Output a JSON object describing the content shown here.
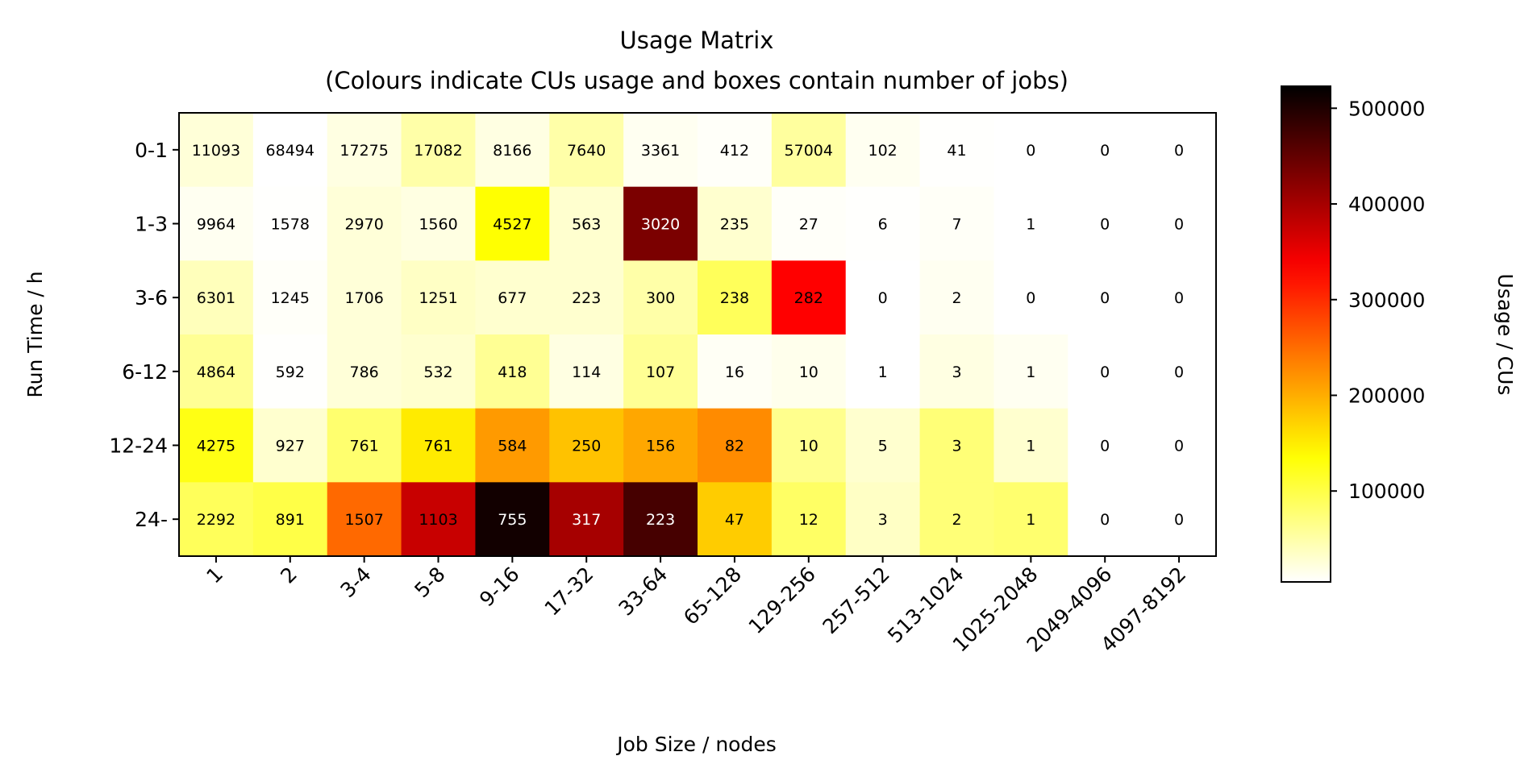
{
  "chart_data": {
    "type": "heatmap",
    "title": "Usage Matrix",
    "subtitle": "(Colours indicate CUs usage and boxes contain number of jobs)",
    "xlabel": "Job Size / nodes",
    "ylabel": "Run Time / h",
    "colorbar_label": "Usage / CUs",
    "colormap": "hot_r",
    "color_range": [
      5000,
      523000
    ],
    "colorbar_ticks": [
      100000,
      200000,
      300000,
      400000,
      500000
    ],
    "colorbar_tick_labels": [
      "100000",
      "200000",
      "300000",
      "400000",
      "500000"
    ],
    "x_categories": [
      "1",
      "2",
      "3-4",
      "5-8",
      "9-16",
      "17-32",
      "33-64",
      "65-128",
      "129-256",
      "257-512",
      "513-1024",
      "1025-2048",
      "2049-4096",
      "4097-8192"
    ],
    "y_categories": [
      "0-1",
      "1-3",
      "3-6",
      "6-12",
      "12-24",
      "24-"
    ],
    "job_counts": [
      [
        "11093",
        "68494",
        "17275",
        "17082",
        "8166",
        "7640",
        "3361",
        "412",
        "57004",
        "102",
        "41",
        "0",
        "0",
        "0"
      ],
      [
        "9964",
        "1578",
        "2970",
        "1560",
        "4527",
        "563",
        "3020",
        "235",
        "27",
        "6",
        "7",
        "1",
        "0",
        "0"
      ],
      [
        "6301",
        "1245",
        "1706",
        "1251",
        "677",
        "223",
        "300",
        "238",
        "282",
        "0",
        "2",
        "0",
        "0",
        "0"
      ],
      [
        "4864",
        "592",
        "786",
        "532",
        "418",
        "114",
        "107",
        "16",
        "10",
        "1",
        "3",
        "1",
        "0",
        "0"
      ],
      [
        "4275",
        "927",
        "761",
        "761",
        "584",
        "250",
        "156",
        "82",
        "10",
        "5",
        "3",
        "1",
        "0",
        "0"
      ],
      [
        "2292",
        "891",
        "1507",
        "1103",
        "755",
        "317",
        "223",
        "47",
        "12",
        "3",
        "2",
        "1",
        "0",
        "0"
      ]
    ],
    "usage_estimated": [
      [
        25000,
        5000,
        20000,
        50000,
        20000,
        50000,
        12000,
        8000,
        55000,
        12000,
        6000,
        0,
        0,
        0
      ],
      [
        12000,
        6000,
        25000,
        20000,
        136000,
        30000,
        432000,
        30000,
        8000,
        6000,
        9000,
        0,
        0,
        0
      ],
      [
        40000,
        8000,
        25000,
        35000,
        30000,
        30000,
        50000,
        90000,
        334000,
        0,
        12000,
        0,
        0,
        0
      ],
      [
        60000,
        6000,
        25000,
        30000,
        60000,
        20000,
        60000,
        10000,
        15000,
        0,
        20000,
        12000,
        0,
        0
      ],
      [
        126000,
        30000,
        80000,
        152000,
        215000,
        184000,
        205000,
        226000,
        64000,
        30000,
        75000,
        30000,
        0,
        0
      ],
      [
        90000,
        100000,
        253000,
        375000,
        510000,
        400000,
        471000,
        176000,
        85000,
        35000,
        75000,
        80000,
        0,
        0
      ]
    ],
    "grid": false,
    "legend": "colorbar-right"
  }
}
